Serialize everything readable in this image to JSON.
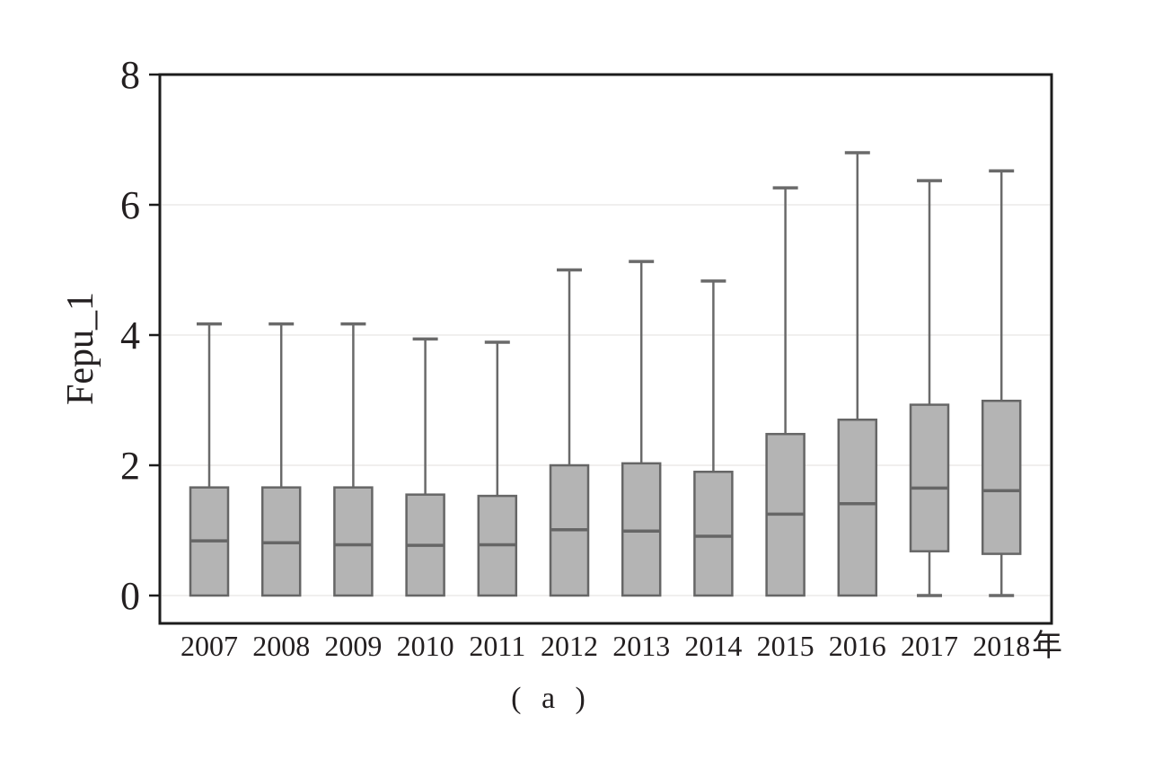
{
  "chart_data": {
    "type": "boxplot",
    "title": "",
    "ylabel": "Fepu_1",
    "x_unit_suffix": "年",
    "caption": "( a )",
    "categories": [
      "2007",
      "2008",
      "2009",
      "2010",
      "2011",
      "2012",
      "2013",
      "2014",
      "2015",
      "2016",
      "2017",
      "2018"
    ],
    "ytick_labels": [
      "0",
      "2",
      "4",
      "6",
      "8"
    ],
    "ytick_values": [
      0,
      2,
      4,
      6,
      8
    ],
    "grid_values": [
      0,
      2,
      4,
      6
    ],
    "ylim": [
      -0.43,
      8
    ],
    "legend_position": "none",
    "series": [
      {
        "category": "2007",
        "whisker_low": 0,
        "q1": 0,
        "median": 0.84,
        "q3": 1.66,
        "whisker_high": 4.17
      },
      {
        "category": "2008",
        "whisker_low": 0,
        "q1": 0,
        "median": 0.81,
        "q3": 1.66,
        "whisker_high": 4.17
      },
      {
        "category": "2009",
        "whisker_low": 0,
        "q1": 0,
        "median": 0.78,
        "q3": 1.66,
        "whisker_high": 4.17
      },
      {
        "category": "2010",
        "whisker_low": 0,
        "q1": 0,
        "median": 0.77,
        "q3": 1.55,
        "whisker_high": 3.94
      },
      {
        "category": "2011",
        "whisker_low": 0,
        "q1": 0,
        "median": 0.78,
        "q3": 1.53,
        "whisker_high": 3.89
      },
      {
        "category": "2012",
        "whisker_low": 0,
        "q1": 0,
        "median": 1.01,
        "q3": 2.0,
        "whisker_high": 5.0
      },
      {
        "category": "2013",
        "whisker_low": 0,
        "q1": 0,
        "median": 0.99,
        "q3": 2.03,
        "whisker_high": 5.13
      },
      {
        "category": "2014",
        "whisker_low": 0,
        "q1": 0,
        "median": 0.91,
        "q3": 1.9,
        "whisker_high": 4.83
      },
      {
        "category": "2015",
        "whisker_low": 0,
        "q1": 0,
        "median": 1.25,
        "q3": 2.48,
        "whisker_high": 6.26
      },
      {
        "category": "2016",
        "whisker_low": 0,
        "q1": 0,
        "median": 1.41,
        "q3": 2.7,
        "whisker_high": 6.8
      },
      {
        "category": "2017",
        "whisker_low": 0,
        "q1": 0.68,
        "median": 1.65,
        "q3": 2.93,
        "whisker_high": 6.37
      },
      {
        "category": "2018",
        "whisker_low": 0,
        "q1": 0.64,
        "median": 1.61,
        "q3": 2.99,
        "whisker_high": 6.52
      }
    ]
  },
  "colors": {
    "background": "#ffffff",
    "box_fill": "#b4b4b4",
    "box_border": "#666666",
    "whisker": "#6a6a6a",
    "frame": "#1c1c1c",
    "grid": "#f0efee",
    "text": "#231f20"
  }
}
